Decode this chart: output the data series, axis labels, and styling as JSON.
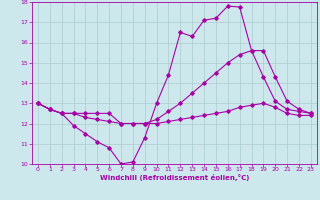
{
  "xlabel": "Windchill (Refroidissement éolien,°C)",
  "bg_color": "#cce8ec",
  "line_color": "#aa00aa",
  "grid_color": "#aacccc",
  "x": [
    0,
    1,
    2,
    3,
    4,
    5,
    6,
    7,
    8,
    9,
    10,
    11,
    12,
    13,
    14,
    15,
    16,
    17,
    18,
    19,
    20,
    21,
    22,
    23
  ],
  "line1": [
    13.0,
    12.7,
    12.5,
    11.9,
    11.5,
    11.1,
    10.8,
    10.0,
    10.1,
    11.3,
    13.0,
    14.4,
    16.5,
    16.3,
    17.1,
    17.2,
    17.8,
    17.75,
    15.6,
    14.3,
    13.1,
    12.7,
    12.6,
    12.5
  ],
  "line2": [
    13.0,
    12.7,
    12.5,
    12.5,
    12.5,
    12.5,
    12.5,
    12.0,
    12.0,
    12.0,
    12.2,
    12.6,
    13.0,
    13.5,
    14.0,
    14.5,
    15.0,
    15.4,
    15.6,
    15.6,
    14.3,
    13.1,
    12.7,
    12.5
  ],
  "line3": [
    13.0,
    12.7,
    12.5,
    12.5,
    12.3,
    12.2,
    12.1,
    12.0,
    12.0,
    12.0,
    12.0,
    12.1,
    12.2,
    12.3,
    12.4,
    12.5,
    12.6,
    12.8,
    12.9,
    13.0,
    12.8,
    12.5,
    12.4,
    12.4
  ],
  "ylim": [
    10,
    18
  ],
  "yticks": [
    10,
    11,
    12,
    13,
    14,
    15,
    16,
    17,
    18
  ],
  "xticks": [
    0,
    1,
    2,
    3,
    4,
    5,
    6,
    7,
    8,
    9,
    10,
    11,
    12,
    13,
    14,
    15,
    16,
    17,
    18,
    19,
    20,
    21,
    22,
    23
  ]
}
